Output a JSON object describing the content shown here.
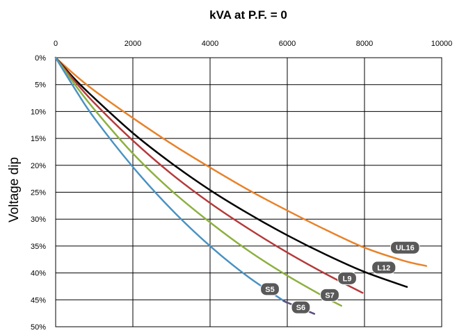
{
  "chart_data": {
    "type": "line",
    "title": "kVA at P.F. = 0",
    "ylabel": "Voltage dip",
    "xlabel": "",
    "xlim": [
      0,
      10000
    ],
    "ylim": [
      0,
      50
    ],
    "x_axis_position": "top",
    "y_inverted": true,
    "grid": true,
    "x_ticks": [
      "0",
      "2000",
      "4000",
      "6000",
      "8000",
      "10000"
    ],
    "y_ticks": [
      "0%",
      "5%",
      "10%",
      "15%",
      "20%",
      "25%",
      "30%",
      "35%",
      "40%",
      "45%",
      "50%"
    ],
    "series": [
      {
        "name": "UL16",
        "color": "#E8822A",
        "x": [
          0,
          500,
          1000,
          2000,
          3000,
          4000,
          5000,
          6000,
          7000,
          8000,
          9000,
          9600
        ],
        "y": [
          0,
          3.2,
          6.1,
          11.2,
          16.0,
          20.4,
          24.6,
          28.4,
          32.0,
          35.3,
          37.7,
          38.7
        ]
      },
      {
        "name": "L12",
        "color": "#000000",
        "x": [
          0,
          500,
          1000,
          2000,
          3000,
          4000,
          5000,
          6000,
          7000,
          8000,
          9100
        ],
        "y": [
          0,
          4.0,
          7.5,
          14.0,
          19.6,
          24.6,
          29.0,
          33.0,
          36.6,
          39.8,
          42.6
        ]
      },
      {
        "name": "L9",
        "color": "#B53A3A",
        "x": [
          0,
          500,
          1000,
          2000,
          3000,
          4000,
          5000,
          6000,
          7000,
          7950
        ],
        "y": [
          0,
          4.4,
          8.4,
          15.4,
          21.6,
          27.0,
          31.8,
          36.2,
          40.2,
          43.7
        ]
      },
      {
        "name": "S7",
        "color": "#8DB040",
        "x": [
          0,
          500,
          1000,
          2000,
          3000,
          4000,
          5000,
          6000,
          7000,
          7400
        ],
        "y": [
          0,
          5.0,
          9.6,
          17.8,
          24.7,
          30.6,
          35.9,
          40.5,
          44.6,
          46.1
        ]
      },
      {
        "name": "S5",
        "color": "#4A92C2",
        "x": [
          0,
          500,
          1000,
          2000,
          3000,
          4000,
          5000,
          6000
        ],
        "y": [
          0,
          5.8,
          11.2,
          20.3,
          28.2,
          35.0,
          40.8,
          45.6
        ]
      },
      {
        "name": "S6",
        "color": "#5B4E7A",
        "x": [
          5900,
          6300,
          6700
        ],
        "y": [
          45.2,
          46.4,
          47.6
        ]
      }
    ],
    "labels": [
      {
        "text": "UL16",
        "x": 9050,
        "y": 35.3
      },
      {
        "text": "L12",
        "x": 8500,
        "y": 39.0
      },
      {
        "text": "L9",
        "x": 7550,
        "y": 41.0
      },
      {
        "text": "S5",
        "x": 5550,
        "y": 43.0
      },
      {
        "text": "S7",
        "x": 7100,
        "y": 44.1
      },
      {
        "text": "S6",
        "x": 6350,
        "y": 46.4
      }
    ],
    "tag_color": "#595959"
  }
}
